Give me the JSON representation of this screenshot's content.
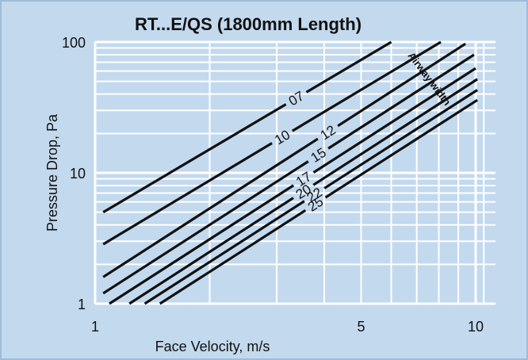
{
  "chart_data": {
    "type": "line",
    "title": "RT...E/QS (1800mm Length)",
    "xlabel": "Face Velocity, m/s",
    "ylabel": "Pressure Drop, Pa",
    "x_scale": "log",
    "y_scale": "log",
    "xlim": [
      1,
      10.5
    ],
    "ylim": [
      1,
      100
    ],
    "x_ticks": [
      1,
      5,
      10
    ],
    "x_tick_labels": [
      "1",
      "5",
      "10"
    ],
    "y_ticks": [
      1,
      10,
      100
    ],
    "y_tick_labels": [
      "1",
      "10",
      "100"
    ],
    "grid": true,
    "annotation": "Airway width",
    "series": [
      {
        "name": "07",
        "x": [
          1.05,
          6.0
        ],
        "y": [
          5.0,
          100
        ]
      },
      {
        "name": "10",
        "x": [
          1.05,
          8.1
        ],
        "y": [
          2.85,
          100
        ]
      },
      {
        "name": "12",
        "x": [
          1.05,
          9.4
        ],
        "y": [
          1.6,
          97
        ]
      },
      {
        "name": "15",
        "x": [
          1.05,
          9.9
        ],
        "y": [
          1.2,
          80
        ]
      },
      {
        "name": "17",
        "x": [
          1.09,
          10.0
        ],
        "y": [
          1.0,
          63
        ]
      },
      {
        "name": "20",
        "x": [
          1.23,
          10.1
        ],
        "y": [
          1.0,
          52
        ]
      },
      {
        "name": "22",
        "x": [
          1.35,
          10.1
        ],
        "y": [
          1.0,
          43
        ]
      },
      {
        "name": "25",
        "x": [
          1.48,
          10.1
        ],
        "y": [
          1.0,
          36
        ]
      }
    ]
  },
  "colors": {
    "background": "#c3d9ee",
    "grid": "#ffffff",
    "line": "#111111"
  }
}
